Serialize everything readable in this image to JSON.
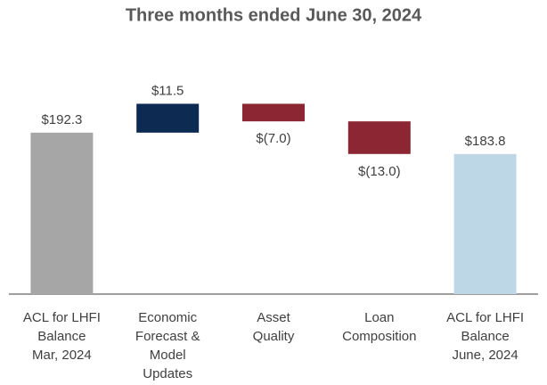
{
  "chart_data": {
    "type": "waterfall",
    "title": "Three months ended June 30, 2024",
    "categories": [
      [
        "ACL for LHFI",
        "Balance",
        "Mar, 2024"
      ],
      [
        "Economic",
        "Forecast &",
        "Model",
        "Updates"
      ],
      [
        "Asset",
        "Quality"
      ],
      [
        "Loan",
        "Composition"
      ],
      [
        "ACL for LHFI",
        "Balance",
        "June, 2024"
      ]
    ],
    "measures": [
      "absolute",
      "relative",
      "relative",
      "relative",
      "total"
    ],
    "values": [
      192.3,
      11.5,
      -7.0,
      -13.0,
      183.8
    ],
    "value_labels": [
      "$192.3",
      "$11.5",
      "$(7.0)",
      "$(13.0)",
      "$183.8"
    ],
    "colors": [
      "#a6a6a6",
      "#0c2a52",
      "#8c2633",
      "#8c2633",
      "#bdd7e7"
    ],
    "ylim": [
      128,
      232
    ]
  }
}
